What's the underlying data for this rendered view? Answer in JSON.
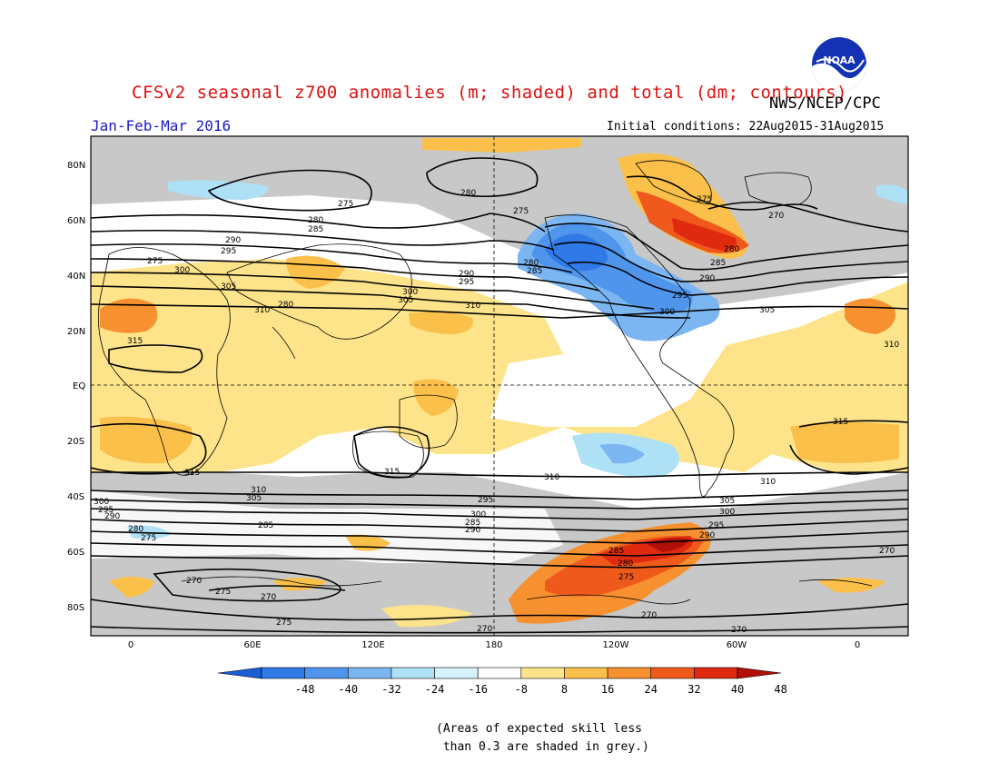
{
  "title": "CFSv2 seasonal z700 anomalies (m; shaded) and total (dm; contours)",
  "agency": "NWS/NCEP/CPC",
  "logo_text": "NOAA",
  "period": "Jan-Feb-Mar 2016",
  "initial_conditions": "Initial conditions: 22Aug2015-31Aug2015",
  "lat_labels": [
    "80N",
    "60N",
    "40N",
    "20N",
    "EQ",
    "20S",
    "40S",
    "60S",
    "80S"
  ],
  "lon_labels": [
    "0",
    "60E",
    "120E",
    "180",
    "120W",
    "60W",
    "0"
  ],
  "colorbar": {
    "labels": [
      "-48",
      "-40",
      "-32",
      "-24",
      "-16",
      "-8",
      "8",
      "16",
      "24",
      "32",
      "40",
      "48"
    ],
    "colors": [
      "#1a5fd6",
      "#2f7ae6",
      "#4f95ec",
      "#7cb6f2",
      "#aee0f6",
      "#d6f3fb",
      "#ffffff",
      "#fde48a",
      "#fbc04a",
      "#f7902e",
      "#ef5a1c",
      "#df2a10",
      "#b01008"
    ]
  },
  "contour_labels": [
    "275",
    "280",
    "280",
    "285",
    "290",
    "295",
    "300",
    "305",
    "310",
    "315",
    "315",
    "310",
    "305",
    "300",
    "295",
    "290",
    "285",
    "280",
    "275",
    "270",
    "270",
    "275",
    "270",
    "275",
    "270",
    "280",
    "275",
    "275",
    "285",
    "290",
    "295",
    "300",
    "305",
    "310",
    "310",
    "315",
    "315",
    "310",
    "305",
    "300",
    "295",
    "290",
    "285",
    "280",
    "275",
    "270",
    "270",
    "270",
    "280",
    "285",
    "290",
    "295",
    "300",
    "305",
    "310",
    "300",
    "295",
    "290",
    "285",
    "280",
    "275"
  ],
  "note": "(Areas of expected skill less\n than 0.3 are shaded in grey.)"
}
